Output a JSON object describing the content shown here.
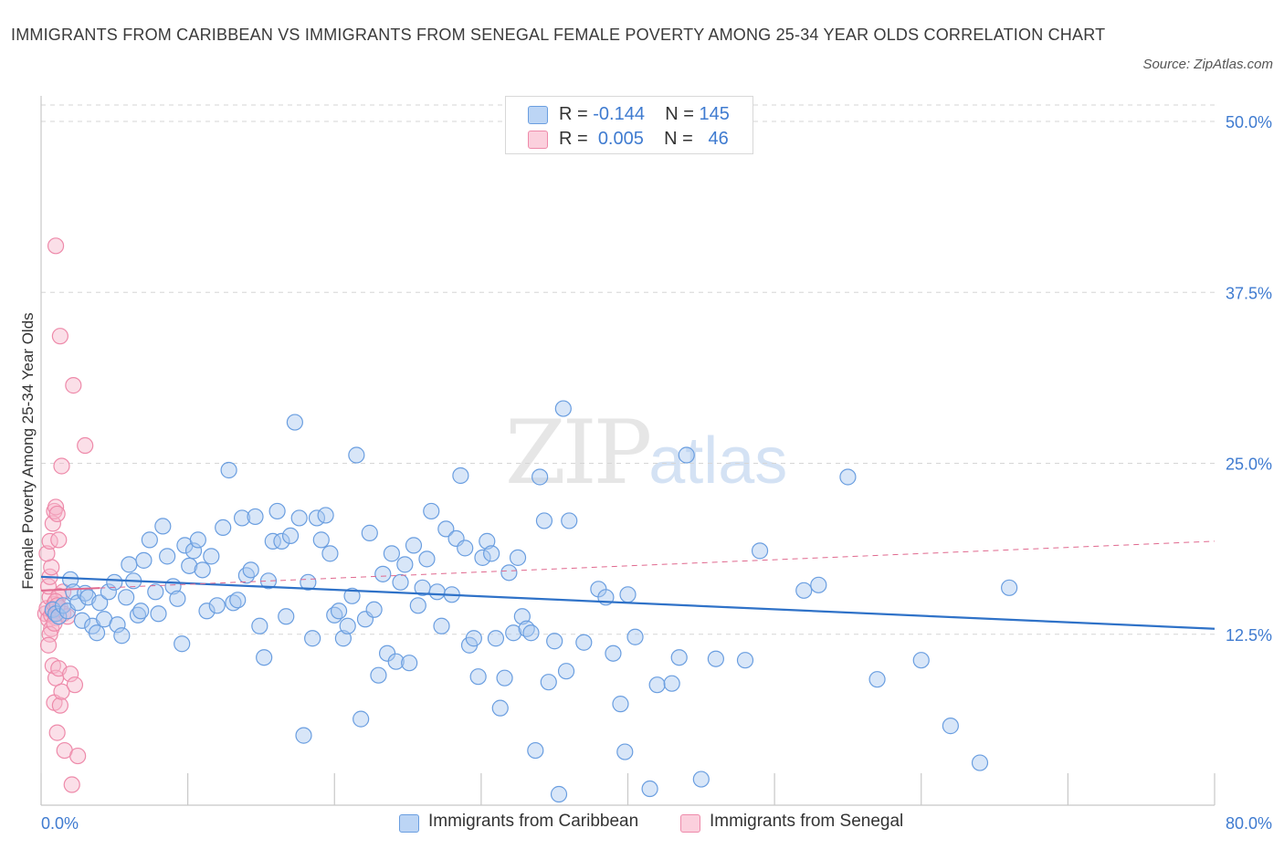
{
  "header": {
    "title": "IMMIGRANTS FROM CARIBBEAN VS IMMIGRANTS FROM SENEGAL FEMALE POVERTY AMONG 25-34 YEAR OLDS CORRELATION CHART",
    "source": "Source: ZipAtlas.com"
  },
  "watermark": {
    "zip": "ZIP",
    "atlas": "atlas"
  },
  "legend": {
    "r_label": "R =",
    "n_label": "N =",
    "caribbean": {
      "r": "-0.144",
      "n": "145"
    },
    "senegal": {
      "r": "0.005",
      "n": "46"
    }
  },
  "bottom_legend": {
    "caribbean": "Immigrants from Caribbean",
    "senegal": "Immigrants from Senegal"
  },
  "colors": {
    "caribbean_fill": "#a9c8f0",
    "caribbean_stroke": "#6a9ee0",
    "caribbean_line": "#2f72c8",
    "senegal_fill": "#f7b8cc",
    "senegal_stroke": "#ee8aaa",
    "senegal_line": "#e0688e",
    "axis_label": "#3f7bd0",
    "grid": "#d6d6d6"
  },
  "chart_data": {
    "type": "scatter",
    "title": "IMMIGRANTS FROM CARIBBEAN VS IMMIGRANTS FROM SENEGAL FEMALE POVERTY AMONG 25-34 YEAR OLDS CORRELATION CHART",
    "xlabel": "",
    "ylabel": "Female Poverty Among 25-34 Year Olds",
    "xlim": [
      0,
      80
    ],
    "ylim": [
      0,
      50
    ],
    "x_tick_labels": [
      {
        "value": 0,
        "label": "0.0%"
      },
      {
        "value": 80,
        "label": "80.0%"
      }
    ],
    "y_tick_labels": [
      {
        "value": 12.5,
        "label": "12.5%"
      },
      {
        "value": 25,
        "label": "25.0%"
      },
      {
        "value": 37.5,
        "label": "37.5%"
      },
      {
        "value": 50,
        "label": "50.0%"
      }
    ],
    "grid": true,
    "legend_position": "top-center",
    "series": [
      {
        "name": "Immigrants from Caribbean",
        "r": -0.144,
        "n": 145,
        "trend": {
          "x": [
            0,
            80
          ],
          "y": [
            16.7,
            12.9
          ]
        },
        "points": [
          [
            0.8,
            14.3
          ],
          [
            1.0,
            14.0
          ],
          [
            1.2,
            13.8
          ],
          [
            1.5,
            14.6
          ],
          [
            1.8,
            14.2
          ],
          [
            2.0,
            16.5
          ],
          [
            2.2,
            15.6
          ],
          [
            2.5,
            14.8
          ],
          [
            2.8,
            13.5
          ],
          [
            3.0,
            15.5
          ],
          [
            3.2,
            15.2
          ],
          [
            3.5,
            13.1
          ],
          [
            3.8,
            12.6
          ],
          [
            4.0,
            14.8
          ],
          [
            4.3,
            13.6
          ],
          [
            4.6,
            15.6
          ],
          [
            5.0,
            16.3
          ],
          [
            5.2,
            13.2
          ],
          [
            5.5,
            12.4
          ],
          [
            5.8,
            15.2
          ],
          [
            6.0,
            17.6
          ],
          [
            6.3,
            16.4
          ],
          [
            6.6,
            13.9
          ],
          [
            6.8,
            14.2
          ],
          [
            7.0,
            17.9
          ],
          [
            7.4,
            19.4
          ],
          [
            7.8,
            15.6
          ],
          [
            8.0,
            14.0
          ],
          [
            8.3,
            20.4
          ],
          [
            8.6,
            18.2
          ],
          [
            9.0,
            16.0
          ],
          [
            9.3,
            15.1
          ],
          [
            9.6,
            11.8
          ],
          [
            9.8,
            19.0
          ],
          [
            10.1,
            17.5
          ],
          [
            10.4,
            18.6
          ],
          [
            10.7,
            19.4
          ],
          [
            11.0,
            17.2
          ],
          [
            11.3,
            14.2
          ],
          [
            11.6,
            18.2
          ],
          [
            12.0,
            14.6
          ],
          [
            12.4,
            20.3
          ],
          [
            12.8,
            24.5
          ],
          [
            13.1,
            14.8
          ],
          [
            13.4,
            15.0
          ],
          [
            13.7,
            21.0
          ],
          [
            14.0,
            16.8
          ],
          [
            14.3,
            17.2
          ],
          [
            14.6,
            21.1
          ],
          [
            14.9,
            13.1
          ],
          [
            15.2,
            10.8
          ],
          [
            15.5,
            16.4
          ],
          [
            15.8,
            19.3
          ],
          [
            16.1,
            21.5
          ],
          [
            16.4,
            19.3
          ],
          [
            16.7,
            13.8
          ],
          [
            17.0,
            19.7
          ],
          [
            17.3,
            28.0
          ],
          [
            17.6,
            21.0
          ],
          [
            17.9,
            5.1
          ],
          [
            18.2,
            16.3
          ],
          [
            18.5,
            12.2
          ],
          [
            18.8,
            21.0
          ],
          [
            19.1,
            19.4
          ],
          [
            19.4,
            21.2
          ],
          [
            19.7,
            18.4
          ],
          [
            20.0,
            13.9
          ],
          [
            20.3,
            14.2
          ],
          [
            20.6,
            12.2
          ],
          [
            20.9,
            13.1
          ],
          [
            21.2,
            15.3
          ],
          [
            21.5,
            25.6
          ],
          [
            21.8,
            6.3
          ],
          [
            22.1,
            13.6
          ],
          [
            22.4,
            19.9
          ],
          [
            22.7,
            14.3
          ],
          [
            23.0,
            9.5
          ],
          [
            23.3,
            16.9
          ],
          [
            23.6,
            11.1
          ],
          [
            23.9,
            18.4
          ],
          [
            24.2,
            10.5
          ],
          [
            24.5,
            16.3
          ],
          [
            24.8,
            17.6
          ],
          [
            25.1,
            10.4
          ],
          [
            25.4,
            19.0
          ],
          [
            25.7,
            14.6
          ],
          [
            26.0,
            15.9
          ],
          [
            26.3,
            18.0
          ],
          [
            26.6,
            21.5
          ],
          [
            27.0,
            15.6
          ],
          [
            27.3,
            13.1
          ],
          [
            27.6,
            20.2
          ],
          [
            28.0,
            15.4
          ],
          [
            28.3,
            19.5
          ],
          [
            28.6,
            24.1
          ],
          [
            28.9,
            18.8
          ],
          [
            29.2,
            11.7
          ],
          [
            29.5,
            12.2
          ],
          [
            29.8,
            9.4
          ],
          [
            30.1,
            18.1
          ],
          [
            30.4,
            19.3
          ],
          [
            30.7,
            18.4
          ],
          [
            31.0,
            12.2
          ],
          [
            31.3,
            7.1
          ],
          [
            31.6,
            9.3
          ],
          [
            31.9,
            17.0
          ],
          [
            32.2,
            12.6
          ],
          [
            32.5,
            18.1
          ],
          [
            32.8,
            13.8
          ],
          [
            33.1,
            12.9
          ],
          [
            33.4,
            12.6
          ],
          [
            33.7,
            4.0
          ],
          [
            34.0,
            24.0
          ],
          [
            34.3,
            20.8
          ],
          [
            34.6,
            9.0
          ],
          [
            35.0,
            12.0
          ],
          [
            35.3,
            0.8
          ],
          [
            35.6,
            29.0
          ],
          [
            35.8,
            9.8
          ],
          [
            36.0,
            20.8
          ],
          [
            37.0,
            11.9
          ],
          [
            38.0,
            15.8
          ],
          [
            38.5,
            15.2
          ],
          [
            39.0,
            11.1
          ],
          [
            39.5,
            7.4
          ],
          [
            39.8,
            3.9
          ],
          [
            40.0,
            15.4
          ],
          [
            40.5,
            12.3
          ],
          [
            41.5,
            1.2
          ],
          [
            42.0,
            8.8
          ],
          [
            43.0,
            8.9
          ],
          [
            43.5,
            10.8
          ],
          [
            44.0,
            25.6
          ],
          [
            45.0,
            1.9
          ],
          [
            46.0,
            10.7
          ],
          [
            48.0,
            10.6
          ],
          [
            49.0,
            18.6
          ],
          [
            52.0,
            15.7
          ],
          [
            53.0,
            16.1
          ],
          [
            55.0,
            24.0
          ],
          [
            57.0,
            9.2
          ],
          [
            60.0,
            10.6
          ],
          [
            62.0,
            5.8
          ],
          [
            64.0,
            3.1
          ],
          [
            66.0,
            15.9
          ]
        ]
      },
      {
        "name": "Immigrants from Senegal",
        "r": 0.005,
        "n": 46,
        "trend": {
          "x": [
            0,
            80
          ],
          "y": [
            15.7,
            19.3
          ]
        },
        "points": [
          [
            0.3,
            14.0
          ],
          [
            0.4,
            14.4
          ],
          [
            0.5,
            13.6
          ],
          [
            0.6,
            15.2
          ],
          [
            0.7,
            13.9
          ],
          [
            0.8,
            14.2
          ],
          [
            0.9,
            14.7
          ],
          [
            1.0,
            13.7
          ],
          [
            0.5,
            16.0
          ],
          [
            0.6,
            16.7
          ],
          [
            0.7,
            17.4
          ],
          [
            0.4,
            18.4
          ],
          [
            0.6,
            19.3
          ],
          [
            0.8,
            20.6
          ],
          [
            0.9,
            21.5
          ],
          [
            1.0,
            21.8
          ],
          [
            1.1,
            21.3
          ],
          [
            1.2,
            19.4
          ],
          [
            0.7,
            12.9
          ],
          [
            0.6,
            12.5
          ],
          [
            0.5,
            11.7
          ],
          [
            0.8,
            10.2
          ],
          [
            1.0,
            9.3
          ],
          [
            1.2,
            10.0
          ],
          [
            0.9,
            7.5
          ],
          [
            1.3,
            7.3
          ],
          [
            1.4,
            8.3
          ],
          [
            1.1,
            5.3
          ],
          [
            2.0,
            9.6
          ],
          [
            2.3,
            8.8
          ],
          [
            1.6,
            4.0
          ],
          [
            2.5,
            3.6
          ],
          [
            2.1,
            1.5
          ],
          [
            1.0,
            40.9
          ],
          [
            1.3,
            34.3
          ],
          [
            2.2,
            30.7
          ],
          [
            3.0,
            26.3
          ],
          [
            1.4,
            24.8
          ],
          [
            1.5,
            15.6
          ],
          [
            1.2,
            15.3
          ],
          [
            1.0,
            14.9
          ],
          [
            1.3,
            14.4
          ],
          [
            1.5,
            14.0
          ],
          [
            1.8,
            13.8
          ],
          [
            0.9,
            13.3
          ],
          [
            1.1,
            14.6
          ]
        ]
      }
    ]
  }
}
